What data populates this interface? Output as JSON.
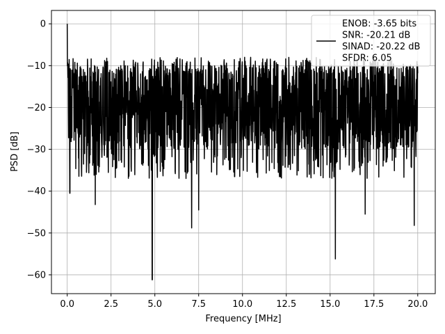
{
  "chart_data": {
    "type": "line",
    "title": "",
    "xlabel": "Frequency [MHz]",
    "ylabel": "PSD [dB]",
    "xlim": [
      -0.9,
      21.0
    ],
    "ylim": [
      -64.5,
      3.2
    ],
    "x_ticks": [
      0.0,
      2.5,
      5.0,
      7.5,
      10.0,
      12.5,
      15.0,
      17.5,
      20.0
    ],
    "x_tick_labels": [
      "0.0",
      "2.5",
      "5.0",
      "7.5",
      "10.0",
      "12.5",
      "15.0",
      "17.5",
      "20.0"
    ],
    "y_ticks": [
      0,
      -10,
      -20,
      -30,
      -40,
      -50,
      -60
    ],
    "y_tick_labels": [
      "0",
      "−10",
      "−20",
      "−30",
      "−40",
      "−50",
      "−60"
    ],
    "grid": true,
    "legend_position": "top-right",
    "series": [
      {
        "name": "ENOB: -3.65 bits\nSNR: -20.21 dB\nSINAD: -20.22 dB\nSFDR: 6.05",
        "color": "#000000",
        "x_range": [
          0,
          20
        ],
        "peak": {
          "x": 0.0,
          "y": 0
        },
        "noise_floor_mean": -20,
        "noise_band": [
          -30,
          -10
        ],
        "notable_dips": [
          {
            "x": 0.15,
            "y": -40.5
          },
          {
            "x": 1.6,
            "y": -43.2
          },
          {
            "x": 4.85,
            "y": -61.2
          },
          {
            "x": 7.1,
            "y": -48.8
          },
          {
            "x": 7.5,
            "y": -44.5
          },
          {
            "x": 15.3,
            "y": -56.2
          },
          {
            "x": 17.0,
            "y": -45.5
          },
          {
            "x": 19.8,
            "y": -48.2
          }
        ]
      }
    ]
  }
}
